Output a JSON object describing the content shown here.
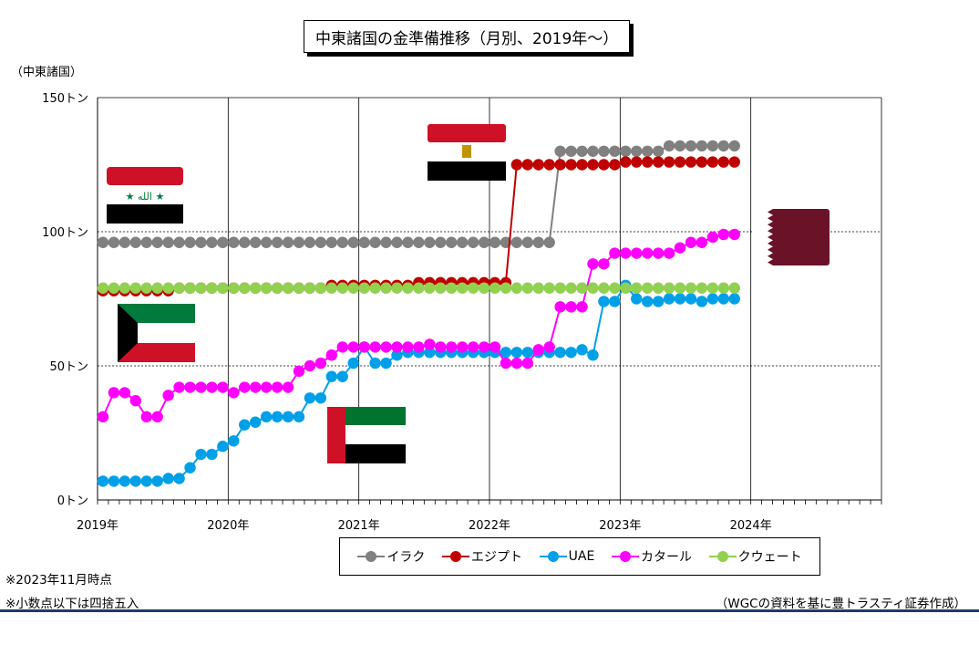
{
  "title": "中東諸国の金準備推移（月別、2019年～）",
  "y_unit_label": "（中東諸国）",
  "notes": [
    "※2023年11月時点",
    "※小数点以下は四捨五入"
  ],
  "source": "（WGCの資料を基に豊トラスティ証券作成）",
  "colors": {
    "iraq": "#808080",
    "egypt": "#c00000",
    "uae": "#00a0e9",
    "qatar": "#ff00ff",
    "kuwait": "#92d050"
  },
  "flags": [
    "Iraq flag",
    "Egypt flag",
    "Kuwait flag",
    "UAE flag",
    "Qatar flag"
  ],
  "chart_data": {
    "type": "line",
    "title": "中東諸国の金準備推移（月別、2019年～）",
    "ylabel": "（中東諸国）",
    "ylim": [
      0,
      150
    ],
    "yticks": [
      "0トン",
      "50トン",
      "100トン",
      "150トン"
    ],
    "x_tick_labels": [
      "2019年",
      "2020年",
      "2021年",
      "2022年",
      "2023年",
      "2024年"
    ],
    "x": [
      "2019-01",
      "2019-02",
      "2019-03",
      "2019-04",
      "2019-05",
      "2019-06",
      "2019-07",
      "2019-08",
      "2019-09",
      "2019-10",
      "2019-11",
      "2019-12",
      "2020-01",
      "2020-02",
      "2020-03",
      "2020-04",
      "2020-05",
      "2020-06",
      "2020-07",
      "2020-08",
      "2020-09",
      "2020-10",
      "2020-11",
      "2020-12",
      "2021-01",
      "2021-02",
      "2021-03",
      "2021-04",
      "2021-05",
      "2021-06",
      "2021-07",
      "2021-08",
      "2021-09",
      "2021-10",
      "2021-11",
      "2021-12",
      "2022-01",
      "2022-02",
      "2022-03",
      "2022-04",
      "2022-05",
      "2022-06",
      "2022-07",
      "2022-08",
      "2022-09",
      "2022-10",
      "2022-11",
      "2022-12",
      "2023-01",
      "2023-02",
      "2023-03",
      "2023-04",
      "2023-05",
      "2023-06",
      "2023-07",
      "2023-08",
      "2023-09",
      "2023-10",
      "2023-11"
    ],
    "grid": true,
    "legend_position": "bottom",
    "series": [
      {
        "name": "イラク",
        "key": "iraq",
        "values": [
          96,
          96,
          96,
          96,
          96,
          96,
          96,
          96,
          96,
          96,
          96,
          96,
          96,
          96,
          96,
          96,
          96,
          96,
          96,
          96,
          96,
          96,
          96,
          96,
          96,
          96,
          96,
          96,
          96,
          96,
          96,
          96,
          96,
          96,
          96,
          96,
          96,
          96,
          96,
          96,
          96,
          96,
          130,
          130,
          130,
          130,
          130,
          130,
          130,
          130,
          130,
          130,
          132,
          132,
          132,
          132,
          132,
          132,
          132
        ]
      },
      {
        "name": "エジプト",
        "key": "egypt",
        "values": [
          78,
          78,
          78,
          78,
          78,
          78,
          78,
          79,
          79,
          79,
          79,
          79,
          79,
          79,
          79,
          79,
          79,
          79,
          79,
          79,
          79,
          80,
          80,
          80,
          80,
          80,
          80,
          80,
          80,
          81,
          81,
          81,
          81,
          81,
          81,
          81,
          81,
          81,
          125,
          125,
          125,
          125,
          125,
          125,
          125,
          125,
          125,
          125,
          126,
          126,
          126,
          126,
          126,
          126,
          126,
          126,
          126,
          126,
          126
        ]
      },
      {
        "name": "UAE",
        "key": "uae",
        "values": [
          7,
          7,
          7,
          7,
          7,
          7,
          8,
          8,
          12,
          17,
          17,
          20,
          22,
          28,
          29,
          31,
          31,
          31,
          31,
          38,
          38,
          46,
          46,
          51,
          57,
          51,
          51,
          54,
          55,
          55,
          55,
          55,
          55,
          55,
          55,
          55,
          55,
          55,
          55,
          55,
          55,
          55,
          55,
          55,
          56,
          54,
          74,
          74,
          80,
          75,
          74,
          74,
          75,
          75,
          75,
          74,
          75,
          75,
          75
        ]
      },
      {
        "name": "カタール",
        "key": "qatar",
        "values": [
          31,
          40,
          40,
          37,
          31,
          31,
          39,
          42,
          42,
          42,
          42,
          42,
          40,
          42,
          42,
          42,
          42,
          42,
          48,
          50,
          51,
          54,
          57,
          57,
          57,
          57,
          57,
          57,
          57,
          57,
          58,
          57,
          57,
          57,
          57,
          57,
          57,
          51,
          51,
          51,
          56,
          57,
          72,
          72,
          72,
          88,
          88,
          92,
          92,
          92,
          92,
          92,
          92,
          94,
          96,
          96,
          98,
          99,
          99
        ]
      },
      {
        "name": "クウェート",
        "key": "kuwait",
        "values": [
          79,
          79,
          79,
          79,
          79,
          79,
          79,
          79,
          79,
          79,
          79,
          79,
          79,
          79,
          79,
          79,
          79,
          79,
          79,
          79,
          79,
          79,
          79,
          79,
          79,
          79,
          79,
          79,
          79,
          79,
          79,
          79,
          79,
          79,
          79,
          79,
          79,
          79,
          79,
          79,
          79,
          79,
          79,
          79,
          79,
          79,
          79,
          79,
          79,
          79,
          79,
          79,
          79,
          79,
          79,
          79,
          79,
          79,
          79
        ]
      }
    ]
  }
}
